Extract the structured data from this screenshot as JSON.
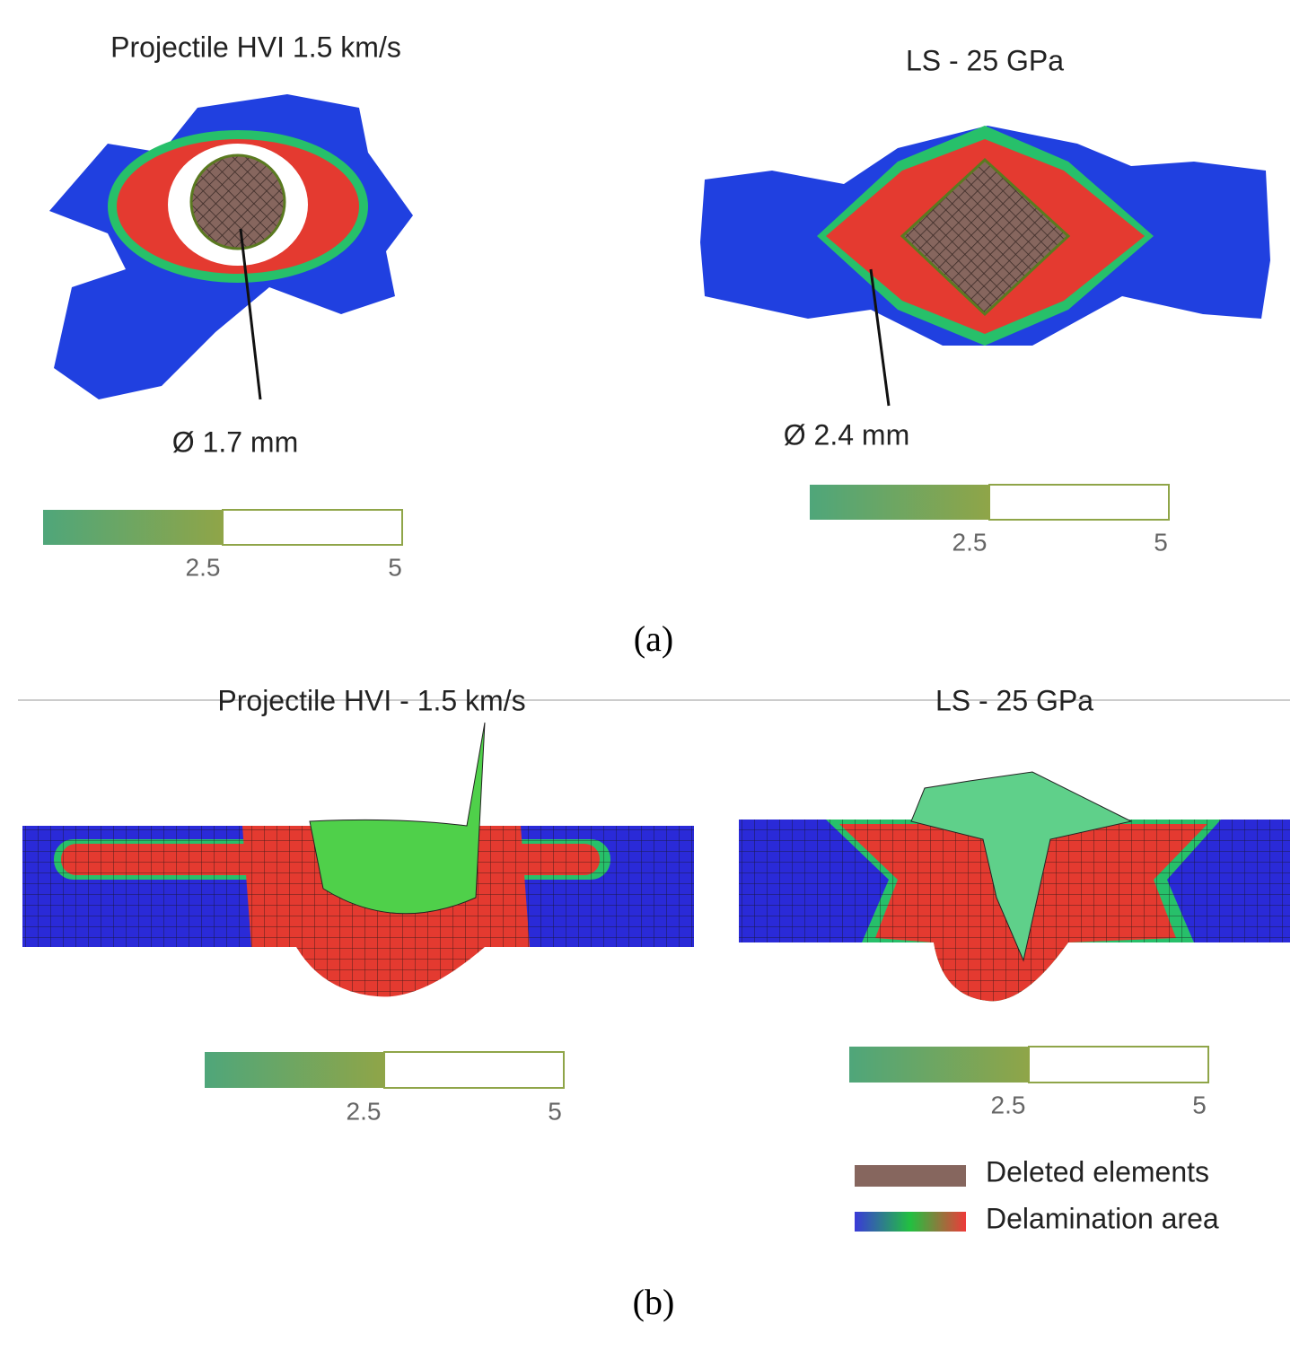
{
  "panels": [
    {
      "label": "(a)",
      "views": [
        {
          "title": "Projectile HVI 1.5 km/s",
          "annotation": "Ø 1.7 mm",
          "scale_ticks": [
            2.5,
            5
          ]
        },
        {
          "title": "LS - 25 GPa",
          "annotation": "Ø 2.4 mm",
          "scale_ticks": [
            2.5,
            5
          ]
        }
      ]
    },
    {
      "label": "(b)",
      "views": [
        {
          "title": "Projectile HVI - 1.5 km/s",
          "scale_ticks": [
            2.5,
            5
          ]
        },
        {
          "title": "LS - 25 GPa",
          "scale_ticks": [
            2.5,
            5
          ]
        }
      ]
    }
  ],
  "legend": [
    {
      "label": "Deleted elements"
    },
    {
      "label": "Delamination area"
    }
  ]
}
